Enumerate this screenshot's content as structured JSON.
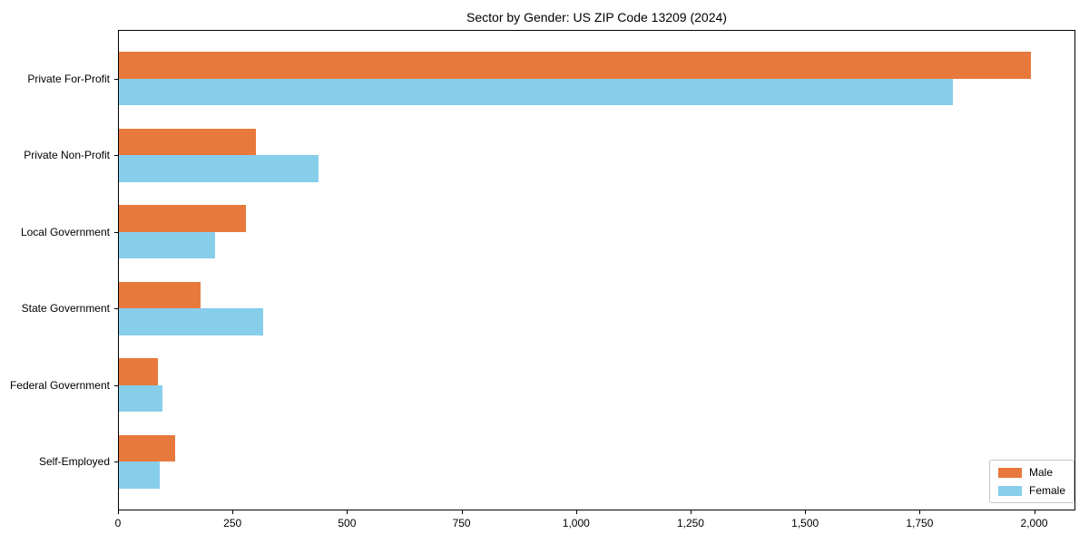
{
  "chart_data": {
    "type": "bar",
    "orientation": "horizontal",
    "title": "Sector by Gender: US ZIP Code 13209 (2024)",
    "categories": [
      "Private For-Profit",
      "Private Non-Profit",
      "Local Government",
      "State Government",
      "Federal Government",
      "Self-Employed"
    ],
    "series": [
      {
        "name": "Male",
        "color": "#E8793C",
        "values": [
          1990,
          300,
          277,
          178,
          86,
          122
        ]
      },
      {
        "name": "Female",
        "color": "#87CEEB",
        "values": [
          1820,
          435,
          210,
          315,
          95,
          89
        ]
      }
    ],
    "xlabel": "",
    "ylabel": "",
    "xlim": [
      0,
      2090
    ],
    "x_tick_values": [
      0,
      250,
      500,
      750,
      1000,
      1250,
      1500,
      1750,
      2000
    ],
    "x_tick_labels": [
      "0",
      "250",
      "500",
      "750",
      "1,000",
      "1,250",
      "1,500",
      "1,750",
      "2,000"
    ],
    "grid": false,
    "legend": {
      "position": "lower right",
      "entries": [
        "Male",
        "Female"
      ]
    },
    "colors": {
      "male_bar": "#E8793C",
      "female_bar": "#87CEEB",
      "spine": "#000000",
      "legend_border": "#c4c4c4"
    }
  }
}
